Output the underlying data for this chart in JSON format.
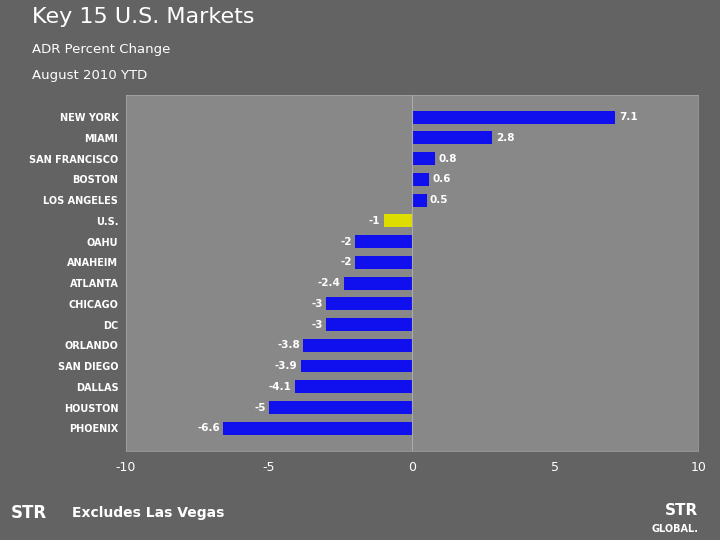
{
  "title": "Key 15 U.S. Markets",
  "subtitle1": "ADR Percent Change",
  "subtitle2": "August 2010 YTD",
  "categories": [
    "NEW YORK",
    "MIAMI",
    "SAN FRANCISCO",
    "BOSTON",
    "LOS ANGELES",
    "U.S.",
    "OAHU",
    "ANAHEIM",
    "ATLANTA",
    "CHICAGO",
    "DC",
    "ORLANDO",
    "SAN DIEGO",
    "DALLAS",
    "HOUSTON",
    "PHOENIX"
  ],
  "values": [
    7.1,
    2.8,
    0.8,
    0.6,
    0.5,
    -1.0,
    -2.0,
    -2.0,
    -2.4,
    -3.0,
    -3.0,
    -3.8,
    -3.9,
    -4.1,
    -5.0,
    -6.6
  ],
  "bar_colors": [
    "#1010ee",
    "#1010ee",
    "#1010ee",
    "#1010ee",
    "#1010ee",
    "#dddd00",
    "#1010ee",
    "#1010ee",
    "#1010ee",
    "#1010ee",
    "#1010ee",
    "#1010ee",
    "#1010ee",
    "#1010ee",
    "#1010ee",
    "#1010ee"
  ],
  "bg_color": "#636363",
  "chart_bg": "#888888",
  "text_color": "#ffffff",
  "footer_bg": "#c85200",
  "footer_text": "Excludes Las Vegas",
  "xlim": [
    -10,
    10
  ],
  "xticks": [
    -10,
    -5,
    0,
    5,
    10
  ]
}
